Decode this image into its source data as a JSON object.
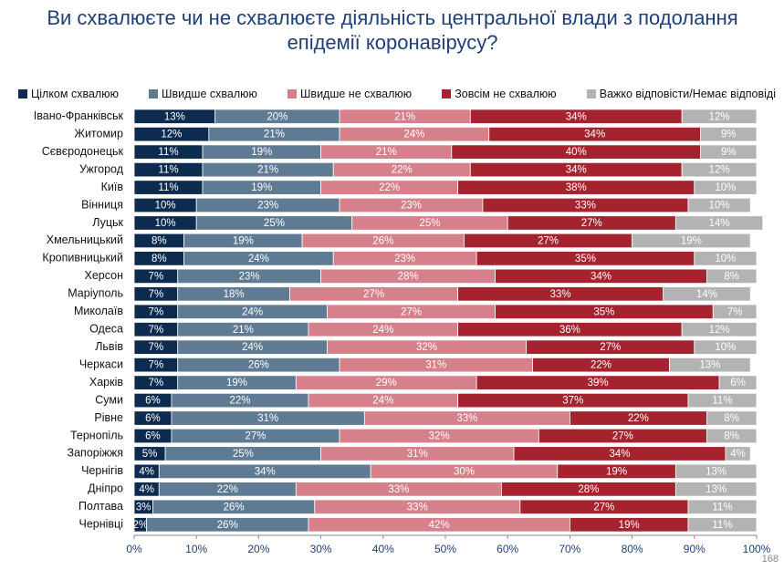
{
  "chart_data": {
    "type": "bar",
    "orientation": "horizontal",
    "stacked": true,
    "title": "Ви схвалюєте чи не схвалюєте діяльність центральної влади з подолання епідемії коронавірусу?",
    "categories": [
      "Івано-Франківськ",
      "Житомир",
      "Сєвєродонецьк",
      "Ужгород",
      "Київ",
      "Вінниця",
      "Луцьк",
      "Хмельницький",
      "Кропивницький",
      "Херсон",
      "Маріуполь",
      "Миколаїв",
      "Одеса",
      "Львів",
      "Черкаси",
      "Харків",
      "Суми",
      "Рівне",
      "Тернопіль",
      "Запоріжжя",
      "Чернігів",
      "Дніпро",
      "Полтава",
      "Чернівці"
    ],
    "series": [
      {
        "name": "Цілком схвалюю",
        "color": "#0d2a4f",
        "values": [
          13,
          12,
          11,
          11,
          11,
          10,
          10,
          8,
          8,
          7,
          7,
          7,
          7,
          7,
          7,
          7,
          6,
          6,
          6,
          5,
          4,
          4,
          3,
          2
        ],
        "value_labels": [
          "13%",
          "12%",
          "11%",
          "11%",
          "11%",
          "10%",
          "10%",
          "8%",
          "8%",
          "7%",
          "7%",
          "7%",
          "7%",
          "7%",
          "7%",
          "7%",
          "6%",
          "6%",
          "6%",
          "5%",
          "4%",
          "4%",
          "3%",
          "2%"
        ]
      },
      {
        "name": "Швидше схвалюю",
        "color": "#5f7a93",
        "values": [
          20,
          21,
          19,
          21,
          19,
          23,
          25,
          19,
          24,
          23,
          18,
          24,
          21,
          24,
          26,
          19,
          22,
          31,
          27,
          25,
          34,
          22,
          26,
          26
        ],
        "value_labels": [
          "20%",
          "21%",
          "19%",
          "21%",
          "19%",
          "23%",
          "25%",
          "19%",
          "24%",
          "23%",
          "18%",
          "24%",
          "21%",
          "24%",
          "26%",
          "19%",
          "22%",
          "31%",
          "27%",
          "25%",
          "34%",
          "22%",
          "26%",
          "26%"
        ]
      },
      {
        "name": "Швидше не схвалюю",
        "color": "#d5808a",
        "values": [
          21,
          24,
          21,
          22,
          22,
          23,
          25,
          26,
          23,
          28,
          27,
          27,
          24,
          32,
          31,
          29,
          24,
          33,
          32,
          31,
          30,
          33,
          33,
          42
        ],
        "value_labels": [
          "21%",
          "24%",
          "21%",
          "22%",
          "22%",
          "23%",
          "25%",
          "26%",
          "23%",
          "28%",
          "27%",
          "27%",
          "24%",
          "32%",
          "31%",
          "29%",
          "24%",
          "33%",
          "32%",
          "31%",
          "30%",
          "33%",
          "33%",
          "42%"
        ]
      },
      {
        "name": "Зовсім не схвалюю",
        "color": "#a5222f",
        "values": [
          34,
          34,
          40,
          34,
          38,
          33,
          27,
          27,
          35,
          34,
          33,
          35,
          36,
          27,
          22,
          39,
          37,
          22,
          27,
          34,
          19,
          28,
          27,
          19
        ],
        "value_labels": [
          "34%",
          "34%",
          "40%",
          "34%",
          "38%",
          "33%",
          "27%",
          "27%",
          "35%",
          "34%",
          "33%",
          "35%",
          "36%",
          "27%",
          "22%",
          "39%",
          "37%",
          "22%",
          "27%",
          "34%",
          "19%",
          "28%",
          "27%",
          "19%"
        ]
      },
      {
        "name": "Важко відповісти/Немає відповіді",
        "color": "#b3b3b3",
        "values": [
          12,
          9,
          9,
          12,
          10,
          10,
          14,
          19,
          10,
          8,
          14,
          7,
          12,
          10,
          13,
          6,
          11,
          8,
          8,
          4,
          13,
          13,
          11,
          11
        ],
        "value_labels": [
          "12%",
          "9%",
          "9%",
          "12%",
          "10%",
          "10%",
          "14%",
          "19%",
          "10%",
          "8%",
          "14%",
          "7%",
          "12%",
          "10%",
          "13%",
          "6%",
          "11%",
          "8%",
          "8%",
          "4%",
          "13%",
          "13%",
          "11%",
          "11%"
        ]
      }
    ],
    "xlim": [
      0,
      100
    ],
    "xticks": [
      {
        "value": 0,
        "label": "0%"
      },
      {
        "value": 10,
        "label": "10%"
      },
      {
        "value": 20,
        "label": "20%"
      },
      {
        "value": 30,
        "label": "30%"
      },
      {
        "value": 40,
        "label": "40%"
      },
      {
        "value": 50,
        "label": "50%"
      },
      {
        "value": 60,
        "label": "60%"
      },
      {
        "value": 70,
        "label": "70%"
      },
      {
        "value": 80,
        "label": "80%"
      },
      {
        "value": 90,
        "label": "90%"
      },
      {
        "value": 100,
        "label": "100%"
      }
    ],
    "legend": "top"
  },
  "page_number": "168"
}
